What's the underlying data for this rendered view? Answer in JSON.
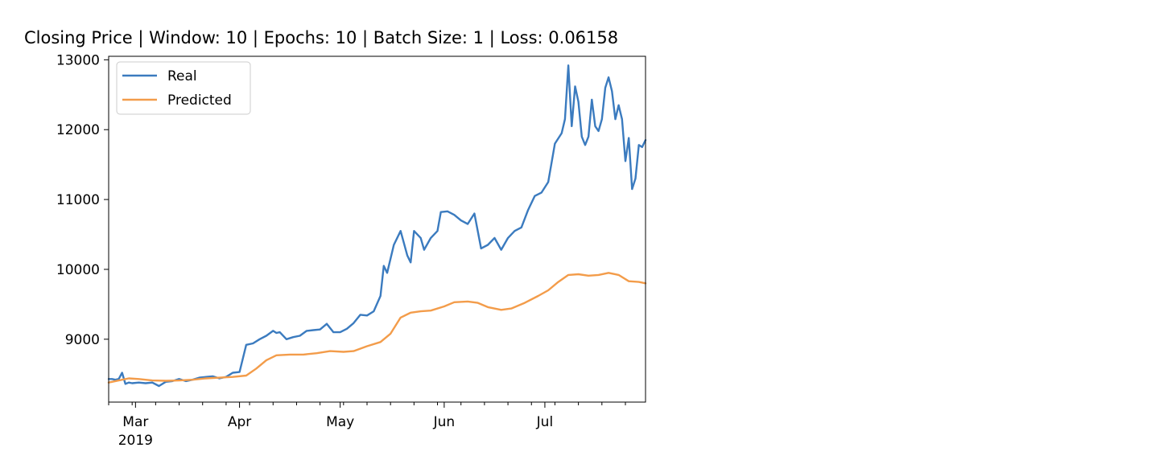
{
  "chart_data": {
    "type": "line",
    "title": "Closing Price | Window: 10 | Epochs: 10  |  Batch Size: 1  |  Loss: 0.06158",
    "xlabel": "",
    "ylabel": "",
    "x_range": [
      "2019-02-21",
      "2019-07-31"
    ],
    "ylim": [
      8100,
      13050
    ],
    "y_ticks": [
      9000,
      10000,
      11000,
      12000,
      13000
    ],
    "x_ticks": [
      {
        "date": "2019-03-01",
        "label": "Mar",
        "sublabel": "2019"
      },
      {
        "date": "2019-04-01",
        "label": "Apr",
        "sublabel": ""
      },
      {
        "date": "2019-05-01",
        "label": "May",
        "sublabel": ""
      },
      {
        "date": "2019-06-01",
        "label": "Jun",
        "sublabel": ""
      },
      {
        "date": "2019-07-01",
        "label": "Jul",
        "sublabel": ""
      }
    ],
    "grid": false,
    "legend": "top-left",
    "series": [
      {
        "name": "Real",
        "color": "#3b7bbf",
        "points": [
          [
            "2019-02-21",
            8430
          ],
          [
            "2019-02-22",
            8430
          ],
          [
            "2019-02-23",
            8420
          ],
          [
            "2019-02-24",
            8430
          ],
          [
            "2019-02-25",
            8520
          ],
          [
            "2019-02-26",
            8360
          ],
          [
            "2019-02-27",
            8380
          ],
          [
            "2019-02-28",
            8370
          ],
          [
            "2019-03-02",
            8380
          ],
          [
            "2019-03-04",
            8370
          ],
          [
            "2019-03-06",
            8380
          ],
          [
            "2019-03-08",
            8330
          ],
          [
            "2019-03-10",
            8390
          ],
          [
            "2019-03-12",
            8400
          ],
          [
            "2019-03-14",
            8430
          ],
          [
            "2019-03-16",
            8400
          ],
          [
            "2019-03-18",
            8420
          ],
          [
            "2019-03-20",
            8450
          ],
          [
            "2019-03-22",
            8460
          ],
          [
            "2019-03-24",
            8470
          ],
          [
            "2019-03-26",
            8440
          ],
          [
            "2019-03-28",
            8460
          ],
          [
            "2019-03-30",
            8520
          ],
          [
            "2019-04-01",
            8530
          ],
          [
            "2019-04-03",
            8920
          ],
          [
            "2019-04-05",
            8940
          ],
          [
            "2019-04-07",
            9000
          ],
          [
            "2019-04-09",
            9050
          ],
          [
            "2019-04-11",
            9120
          ],
          [
            "2019-04-12",
            9090
          ],
          [
            "2019-04-13",
            9100
          ],
          [
            "2019-04-15",
            9000
          ],
          [
            "2019-04-17",
            9030
          ],
          [
            "2019-04-19",
            9050
          ],
          [
            "2019-04-21",
            9120
          ],
          [
            "2019-04-23",
            9130
          ],
          [
            "2019-04-25",
            9140
          ],
          [
            "2019-04-27",
            9220
          ],
          [
            "2019-04-29",
            9100
          ],
          [
            "2019-05-01",
            9100
          ],
          [
            "2019-05-03",
            9150
          ],
          [
            "2019-05-05",
            9230
          ],
          [
            "2019-05-07",
            9350
          ],
          [
            "2019-05-09",
            9340
          ],
          [
            "2019-05-11",
            9400
          ],
          [
            "2019-05-13",
            9620
          ],
          [
            "2019-05-14",
            10050
          ],
          [
            "2019-05-15",
            9950
          ],
          [
            "2019-05-17",
            10350
          ],
          [
            "2019-05-19",
            10550
          ],
          [
            "2019-05-21",
            10200
          ],
          [
            "2019-05-22",
            10100
          ],
          [
            "2019-05-23",
            10550
          ],
          [
            "2019-05-25",
            10450
          ],
          [
            "2019-05-26",
            10280
          ],
          [
            "2019-05-28",
            10450
          ],
          [
            "2019-05-30",
            10550
          ],
          [
            "2019-05-31",
            10820
          ],
          [
            "2019-06-02",
            10830
          ],
          [
            "2019-06-04",
            10780
          ],
          [
            "2019-06-06",
            10700
          ],
          [
            "2019-06-08",
            10650
          ],
          [
            "2019-06-10",
            10800
          ],
          [
            "2019-06-12",
            10300
          ],
          [
            "2019-06-14",
            10350
          ],
          [
            "2019-06-16",
            10450
          ],
          [
            "2019-06-18",
            10280
          ],
          [
            "2019-06-20",
            10450
          ],
          [
            "2019-06-22",
            10550
          ],
          [
            "2019-06-24",
            10600
          ],
          [
            "2019-06-26",
            10850
          ],
          [
            "2019-06-28",
            11050
          ],
          [
            "2019-06-30",
            11100
          ],
          [
            "2019-07-02",
            11250
          ],
          [
            "2019-07-04",
            11800
          ],
          [
            "2019-07-06",
            11950
          ],
          [
            "2019-07-07",
            12150
          ],
          [
            "2019-07-08",
            12920
          ],
          [
            "2019-07-09",
            12050
          ],
          [
            "2019-07-10",
            12620
          ],
          [
            "2019-07-11",
            12400
          ],
          [
            "2019-07-12",
            11900
          ],
          [
            "2019-07-13",
            11780
          ],
          [
            "2019-07-14",
            11900
          ],
          [
            "2019-07-15",
            12430
          ],
          [
            "2019-07-16",
            12050
          ],
          [
            "2019-07-17",
            11980
          ],
          [
            "2019-07-18",
            12150
          ],
          [
            "2019-07-19",
            12600
          ],
          [
            "2019-07-20",
            12750
          ],
          [
            "2019-07-21",
            12550
          ],
          [
            "2019-07-22",
            12150
          ],
          [
            "2019-07-23",
            12350
          ],
          [
            "2019-07-24",
            12150
          ],
          [
            "2019-07-25",
            11550
          ],
          [
            "2019-07-26",
            11880
          ],
          [
            "2019-07-27",
            11150
          ],
          [
            "2019-07-28",
            11300
          ],
          [
            "2019-07-29",
            11780
          ],
          [
            "2019-07-30",
            11750
          ],
          [
            "2019-07-31",
            11850
          ]
        ]
      },
      {
        "name": "Predicted",
        "color": "#f39c4a",
        "points": [
          [
            "2019-02-21",
            8380
          ],
          [
            "2019-02-24",
            8410
          ],
          [
            "2019-02-27",
            8440
          ],
          [
            "2019-03-02",
            8430
          ],
          [
            "2019-03-06",
            8410
          ],
          [
            "2019-03-10",
            8405
          ],
          [
            "2019-03-14",
            8410
          ],
          [
            "2019-03-18",
            8420
          ],
          [
            "2019-03-22",
            8440
          ],
          [
            "2019-03-26",
            8450
          ],
          [
            "2019-03-30",
            8460
          ],
          [
            "2019-04-03",
            8480
          ],
          [
            "2019-04-06",
            8580
          ],
          [
            "2019-04-09",
            8700
          ],
          [
            "2019-04-12",
            8770
          ],
          [
            "2019-04-16",
            8780
          ],
          [
            "2019-04-20",
            8780
          ],
          [
            "2019-04-24",
            8800
          ],
          [
            "2019-04-28",
            8830
          ],
          [
            "2019-05-02",
            8820
          ],
          [
            "2019-05-05",
            8830
          ],
          [
            "2019-05-09",
            8900
          ],
          [
            "2019-05-13",
            8960
          ],
          [
            "2019-05-16",
            9080
          ],
          [
            "2019-05-19",
            9310
          ],
          [
            "2019-05-22",
            9380
          ],
          [
            "2019-05-25",
            9400
          ],
          [
            "2019-05-28",
            9410
          ],
          [
            "2019-06-01",
            9470
          ],
          [
            "2019-06-04",
            9530
          ],
          [
            "2019-06-08",
            9540
          ],
          [
            "2019-06-11",
            9520
          ],
          [
            "2019-06-14",
            9460
          ],
          [
            "2019-06-18",
            9420
          ],
          [
            "2019-06-21",
            9440
          ],
          [
            "2019-06-25",
            9520
          ],
          [
            "2019-06-29",
            9620
          ],
          [
            "2019-07-02",
            9700
          ],
          [
            "2019-07-05",
            9820
          ],
          [
            "2019-07-08",
            9920
          ],
          [
            "2019-07-11",
            9930
          ],
          [
            "2019-07-14",
            9910
          ],
          [
            "2019-07-17",
            9920
          ],
          [
            "2019-07-20",
            9950
          ],
          [
            "2019-07-23",
            9920
          ],
          [
            "2019-07-26",
            9830
          ],
          [
            "2019-07-29",
            9820
          ],
          [
            "2019-07-31",
            9800
          ]
        ]
      }
    ]
  }
}
